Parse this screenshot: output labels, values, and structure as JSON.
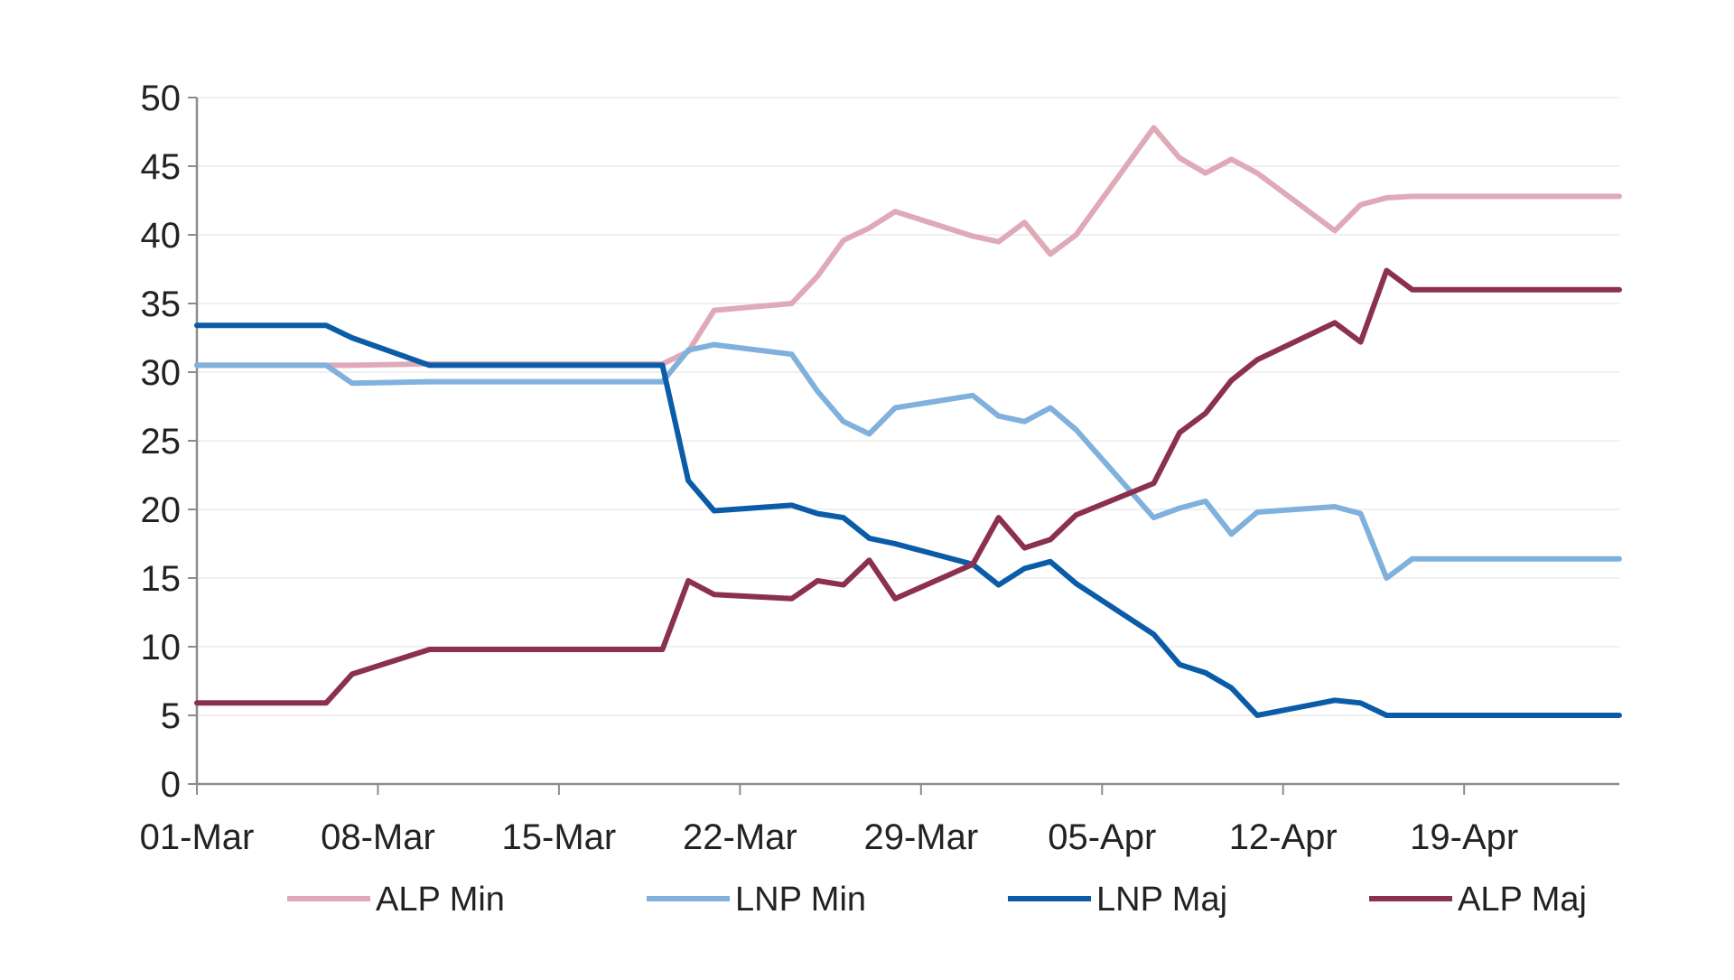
{
  "chart_data": {
    "type": "line",
    "title": "",
    "xlabel": "",
    "ylabel": "",
    "ylim": [
      0,
      50
    ],
    "yticks": [
      "0",
      "5",
      "10",
      "15",
      "20",
      "25",
      "30",
      "35",
      "40",
      "45",
      "50"
    ],
    "x_range": [
      "2022-03-01",
      "2022-04-25"
    ],
    "xticks": [
      {
        "date": "2022-03-01",
        "label": "01-Mar"
      },
      {
        "date": "2022-03-08",
        "label": "08-Mar"
      },
      {
        "date": "2022-03-15",
        "label": "15-Mar"
      },
      {
        "date": "2022-03-22",
        "label": "22-Mar"
      },
      {
        "date": "2022-03-29",
        "label": "29-Mar"
      },
      {
        "date": "2022-04-05",
        "label": "05-Apr"
      },
      {
        "date": "2022-04-12",
        "label": "12-Apr"
      },
      {
        "date": "2022-04-19",
        "label": "19-Apr"
      }
    ],
    "grid": true,
    "legend_position": "bottom",
    "series": [
      {
        "name": "ALP Min",
        "color": "#e0a9b7",
        "points": [
          [
            "2022-03-01",
            30.5
          ],
          [
            "2022-03-06",
            30.5
          ],
          [
            "2022-03-07",
            30.5
          ],
          [
            "2022-03-10",
            30.6
          ],
          [
            "2022-03-19",
            30.6
          ],
          [
            "2022-03-20",
            31.5
          ],
          [
            "2022-03-21",
            34.5
          ],
          [
            "2022-03-24",
            35.0
          ],
          [
            "2022-03-25",
            37.0
          ],
          [
            "2022-03-26",
            39.6
          ],
          [
            "2022-03-27",
            40.5
          ],
          [
            "2022-03-28",
            41.7
          ],
          [
            "2022-03-31",
            39.9
          ],
          [
            "2022-04-01",
            39.5
          ],
          [
            "2022-04-02",
            40.9
          ],
          [
            "2022-04-03",
            38.6
          ],
          [
            "2022-04-04",
            40.0
          ],
          [
            "2022-04-07",
            47.8
          ],
          [
            "2022-04-08",
            45.6
          ],
          [
            "2022-04-09",
            44.5
          ],
          [
            "2022-04-10",
            45.5
          ],
          [
            "2022-04-11",
            44.5
          ],
          [
            "2022-04-14",
            40.3
          ],
          [
            "2022-04-15",
            42.2
          ],
          [
            "2022-04-16",
            42.7
          ],
          [
            "2022-04-17",
            42.8
          ],
          [
            "2022-04-25",
            42.8
          ]
        ]
      },
      {
        "name": "LNP Min",
        "color": "#7fb1dc",
        "points": [
          [
            "2022-03-01",
            30.5
          ],
          [
            "2022-03-06",
            30.5
          ],
          [
            "2022-03-07",
            29.2
          ],
          [
            "2022-03-10",
            29.3
          ],
          [
            "2022-03-19",
            29.3
          ],
          [
            "2022-03-20",
            31.6
          ],
          [
            "2022-03-21",
            32.0
          ],
          [
            "2022-03-24",
            31.3
          ],
          [
            "2022-03-25",
            28.6
          ],
          [
            "2022-03-26",
            26.4
          ],
          [
            "2022-03-27",
            25.5
          ],
          [
            "2022-03-28",
            27.4
          ],
          [
            "2022-03-31",
            28.3
          ],
          [
            "2022-04-01",
            26.8
          ],
          [
            "2022-04-02",
            26.4
          ],
          [
            "2022-04-03",
            27.4
          ],
          [
            "2022-04-04",
            25.8
          ],
          [
            "2022-04-07",
            19.4
          ],
          [
            "2022-04-08",
            20.1
          ],
          [
            "2022-04-09",
            20.6
          ],
          [
            "2022-04-10",
            18.2
          ],
          [
            "2022-04-11",
            19.8
          ],
          [
            "2022-04-14",
            20.2
          ],
          [
            "2022-04-15",
            19.7
          ],
          [
            "2022-04-16",
            15.0
          ],
          [
            "2022-04-17",
            16.4
          ],
          [
            "2022-04-25",
            16.4
          ]
        ]
      },
      {
        "name": "LNP Maj",
        "color": "#0a5ca8",
        "points": [
          [
            "2022-03-01",
            33.4
          ],
          [
            "2022-03-06",
            33.4
          ],
          [
            "2022-03-07",
            32.5
          ],
          [
            "2022-03-10",
            30.5
          ],
          [
            "2022-03-19",
            30.5
          ],
          [
            "2022-03-20",
            22.1
          ],
          [
            "2022-03-21",
            19.9
          ],
          [
            "2022-03-24",
            20.3
          ],
          [
            "2022-03-25",
            19.7
          ],
          [
            "2022-03-26",
            19.4
          ],
          [
            "2022-03-27",
            17.9
          ],
          [
            "2022-03-28",
            17.5
          ],
          [
            "2022-03-31",
            16.0
          ],
          [
            "2022-04-01",
            14.5
          ],
          [
            "2022-04-02",
            15.7
          ],
          [
            "2022-04-03",
            16.2
          ],
          [
            "2022-04-04",
            14.6
          ],
          [
            "2022-04-07",
            10.9
          ],
          [
            "2022-04-08",
            8.7
          ],
          [
            "2022-04-09",
            8.1
          ],
          [
            "2022-04-10",
            7.0
          ],
          [
            "2022-04-11",
            5.0
          ],
          [
            "2022-04-14",
            6.1
          ],
          [
            "2022-04-15",
            5.9
          ],
          [
            "2022-04-16",
            5.0
          ],
          [
            "2022-04-17",
            5.0
          ],
          [
            "2022-04-25",
            5.0
          ]
        ]
      },
      {
        "name": "ALP Maj",
        "color": "#8b3050",
        "points": [
          [
            "2022-03-01",
            5.9
          ],
          [
            "2022-03-06",
            5.9
          ],
          [
            "2022-03-07",
            8.0
          ],
          [
            "2022-03-10",
            9.8
          ],
          [
            "2022-03-19",
            9.8
          ],
          [
            "2022-03-20",
            14.8
          ],
          [
            "2022-03-21",
            13.8
          ],
          [
            "2022-03-24",
            13.5
          ],
          [
            "2022-03-25",
            14.8
          ],
          [
            "2022-03-26",
            14.5
          ],
          [
            "2022-03-27",
            16.3
          ],
          [
            "2022-03-28",
            13.5
          ],
          [
            "2022-03-31",
            16.0
          ],
          [
            "2022-04-01",
            19.4
          ],
          [
            "2022-04-02",
            17.2
          ],
          [
            "2022-04-03",
            17.8
          ],
          [
            "2022-04-04",
            19.6
          ],
          [
            "2022-04-07",
            21.9
          ],
          [
            "2022-04-08",
            25.6
          ],
          [
            "2022-04-09",
            27.0
          ],
          [
            "2022-04-10",
            29.4
          ],
          [
            "2022-04-11",
            30.9
          ],
          [
            "2022-04-14",
            33.6
          ],
          [
            "2022-04-15",
            32.2
          ],
          [
            "2022-04-16",
            37.4
          ],
          [
            "2022-04-17",
            36.0
          ],
          [
            "2022-04-25",
            36.0
          ]
        ]
      }
    ]
  }
}
